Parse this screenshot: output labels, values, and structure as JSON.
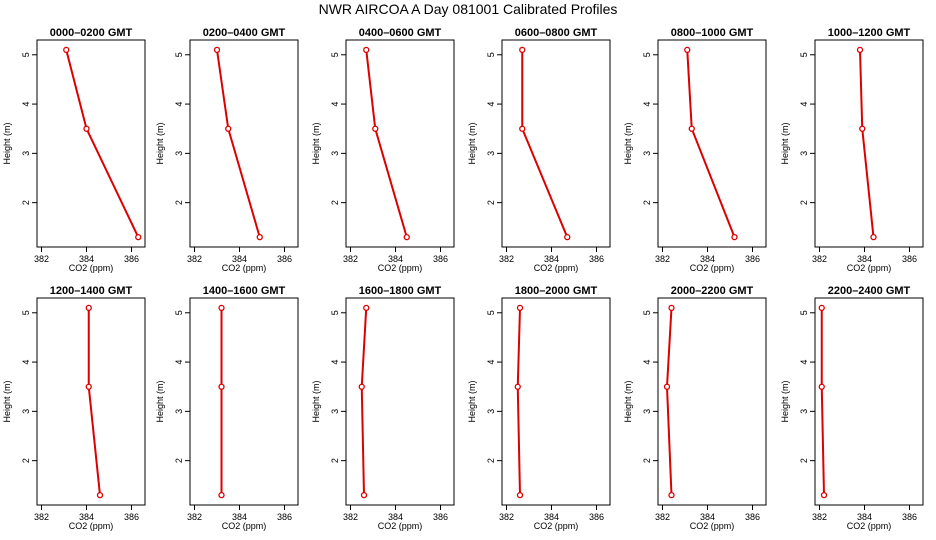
{
  "title": "NWR AIRCOA A  Day 081001  Calibrated Profiles",
  "colors": {
    "series": "#dd0000",
    "marker": "#dd0000",
    "axis": "#000000"
  },
  "chart_data": [
    {
      "type": "line",
      "title": "0000–0200 GMT",
      "xlabel": "CO2 (ppm)",
      "ylabel": "Height (m)",
      "xlim": [
        381.8,
        386.6
      ],
      "ylim": [
        1.1,
        5.3
      ],
      "xticks": [
        "382",
        "384",
        "386"
      ],
      "yticks": [
        "2",
        "3",
        "4",
        "5"
      ],
      "x": [
        383.1,
        384.0,
        386.3
      ],
      "y": [
        5.1,
        3.5,
        1.3
      ]
    },
    {
      "type": "line",
      "title": "0200–0400 GMT",
      "xlabel": "CO2 (ppm)",
      "ylabel": "Height (m)",
      "xlim": [
        381.8,
        386.6
      ],
      "ylim": [
        1.1,
        5.3
      ],
      "xticks": [
        "382",
        "384",
        "386"
      ],
      "yticks": [
        "2",
        "3",
        "4",
        "5"
      ],
      "x": [
        383.0,
        383.5,
        384.9
      ],
      "y": [
        5.1,
        3.5,
        1.3
      ]
    },
    {
      "type": "line",
      "title": "0400–0600 GMT",
      "xlabel": "CO2 (ppm)",
      "ylabel": "Height (m)",
      "xlim": [
        381.8,
        386.6
      ],
      "ylim": [
        1.1,
        5.3
      ],
      "xticks": [
        "382",
        "384",
        "386"
      ],
      "yticks": [
        "2",
        "3",
        "4",
        "5"
      ],
      "x": [
        382.7,
        383.1,
        384.5
      ],
      "y": [
        5.1,
        3.5,
        1.3
      ]
    },
    {
      "type": "line",
      "title": "0600–0800 GMT",
      "xlabel": "CO2 (ppm)",
      "ylabel": "Height (m)",
      "xlim": [
        381.8,
        386.6
      ],
      "ylim": [
        1.1,
        5.3
      ],
      "xticks": [
        "382",
        "384",
        "386"
      ],
      "yticks": [
        "2",
        "3",
        "4",
        "5"
      ],
      "x": [
        382.7,
        382.7,
        384.7
      ],
      "y": [
        5.1,
        3.5,
        1.3
      ]
    },
    {
      "type": "line",
      "title": "0800–1000 GMT",
      "xlabel": "CO2 (ppm)",
      "ylabel": "Height (m)",
      "xlim": [
        381.8,
        386.6
      ],
      "ylim": [
        1.1,
        5.3
      ],
      "xticks": [
        "382",
        "384",
        "386"
      ],
      "yticks": [
        "2",
        "3",
        "4",
        "5"
      ],
      "x": [
        383.1,
        383.3,
        385.2
      ],
      "y": [
        5.1,
        3.5,
        1.3
      ]
    },
    {
      "type": "line",
      "title": "1000–1200 GMT",
      "xlabel": "CO2 (ppm)",
      "ylabel": "Height (m)",
      "xlim": [
        381.8,
        386.6
      ],
      "ylim": [
        1.1,
        5.3
      ],
      "xticks": [
        "382",
        "384",
        "386"
      ],
      "yticks": [
        "2",
        "3",
        "4",
        "5"
      ],
      "x": [
        383.8,
        383.9,
        384.4
      ],
      "y": [
        5.1,
        3.5,
        1.3
      ]
    },
    {
      "type": "line",
      "title": "1200–1400 GMT",
      "xlabel": "CO2 (ppm)",
      "ylabel": "Height (m)",
      "xlim": [
        381.8,
        386.6
      ],
      "ylim": [
        1.1,
        5.3
      ],
      "xticks": [
        "382",
        "384",
        "386"
      ],
      "yticks": [
        "2",
        "3",
        "4",
        "5"
      ],
      "x": [
        384.1,
        384.1,
        384.6
      ],
      "y": [
        5.1,
        3.5,
        1.3
      ]
    },
    {
      "type": "line",
      "title": "1400–1600 GMT",
      "xlabel": "CO2 (ppm)",
      "ylabel": "Height (m)",
      "xlim": [
        381.8,
        386.6
      ],
      "ylim": [
        1.1,
        5.3
      ],
      "xticks": [
        "382",
        "384",
        "386"
      ],
      "yticks": [
        "2",
        "3",
        "4",
        "5"
      ],
      "x": [
        383.2,
        383.2,
        383.2
      ],
      "y": [
        5.1,
        3.5,
        1.3
      ]
    },
    {
      "type": "line",
      "title": "1600–1800 GMT",
      "xlabel": "CO2 (ppm)",
      "ylabel": "Height (m)",
      "xlim": [
        381.8,
        386.6
      ],
      "ylim": [
        1.1,
        5.3
      ],
      "xticks": [
        "382",
        "384",
        "386"
      ],
      "yticks": [
        "2",
        "3",
        "4",
        "5"
      ],
      "x": [
        382.7,
        382.5,
        382.6
      ],
      "y": [
        5.1,
        3.5,
        1.3
      ]
    },
    {
      "type": "line",
      "title": "1800–2000 GMT",
      "xlabel": "CO2 (ppm)",
      "ylabel": "Height (m)",
      "xlim": [
        381.8,
        386.6
      ],
      "ylim": [
        1.1,
        5.3
      ],
      "xticks": [
        "382",
        "384",
        "386"
      ],
      "yticks": [
        "2",
        "3",
        "4",
        "5"
      ],
      "x": [
        382.6,
        382.5,
        382.6
      ],
      "y": [
        5.1,
        3.5,
        1.3
      ]
    },
    {
      "type": "line",
      "title": "2000–2200 GMT",
      "xlabel": "CO2 (ppm)",
      "ylabel": "Height (m)",
      "xlim": [
        381.8,
        386.6
      ],
      "ylim": [
        1.1,
        5.3
      ],
      "xticks": [
        "382",
        "384",
        "386"
      ],
      "yticks": [
        "2",
        "3",
        "4",
        "5"
      ],
      "x": [
        382.4,
        382.2,
        382.4
      ],
      "y": [
        5.1,
        3.5,
        1.3
      ]
    },
    {
      "type": "line",
      "title": "2200–2400 GMT",
      "xlabel": "CO2 (ppm)",
      "ylabel": "Height (m)",
      "xlim": [
        381.8,
        386.6
      ],
      "ylim": [
        1.1,
        5.3
      ],
      "xticks": [
        "382",
        "384",
        "386"
      ],
      "yticks": [
        "2",
        "3",
        "4",
        "5"
      ],
      "x": [
        382.1,
        382.1,
        382.2
      ],
      "y": [
        5.1,
        3.5,
        1.3
      ]
    }
  ]
}
